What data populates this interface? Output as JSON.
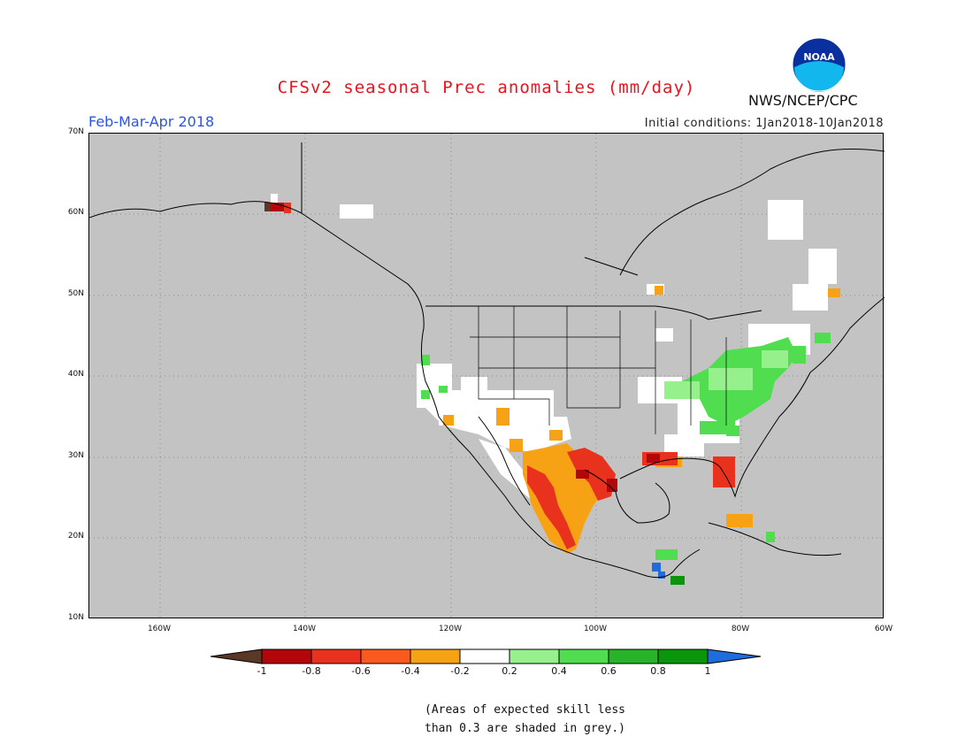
{
  "header": {
    "title": "CFSv2 seasonal Prec anomalies (mm/day)",
    "period": "Feb-Mar-Apr 2018",
    "initial_conditions": "Initial conditions: 1Jan2018-10Jan2018",
    "agency": "NWS/NCEP/CPC",
    "logo_text": "NOAA"
  },
  "map": {
    "lat_labels": [
      "70N",
      "60N",
      "50N",
      "40N",
      "30N",
      "20N",
      "10N"
    ],
    "lon_labels": [
      "160W",
      "140W",
      "120W",
      "100W",
      "80W",
      "60W"
    ],
    "background_color": "#c3c3c3",
    "grid": "dotted"
  },
  "colorbar": {
    "ticks": [
      "-1",
      "-0.8",
      "-0.6",
      "-0.4",
      "-0.2",
      "0.2",
      "0.4",
      "0.6",
      "0.8",
      "1"
    ],
    "colors": [
      "#5a3825",
      "#b3060b",
      "#e8321e",
      "#fb5a1f",
      "#f7a215",
      "#ffffff",
      "#96f08c",
      "#50de50",
      "#28b428",
      "#0a960a",
      "#1f6cdc"
    ]
  },
  "footnote": {
    "line1": "(Areas of expected skill less",
    "line2": "than 0.3 are shaded in grey.)"
  }
}
